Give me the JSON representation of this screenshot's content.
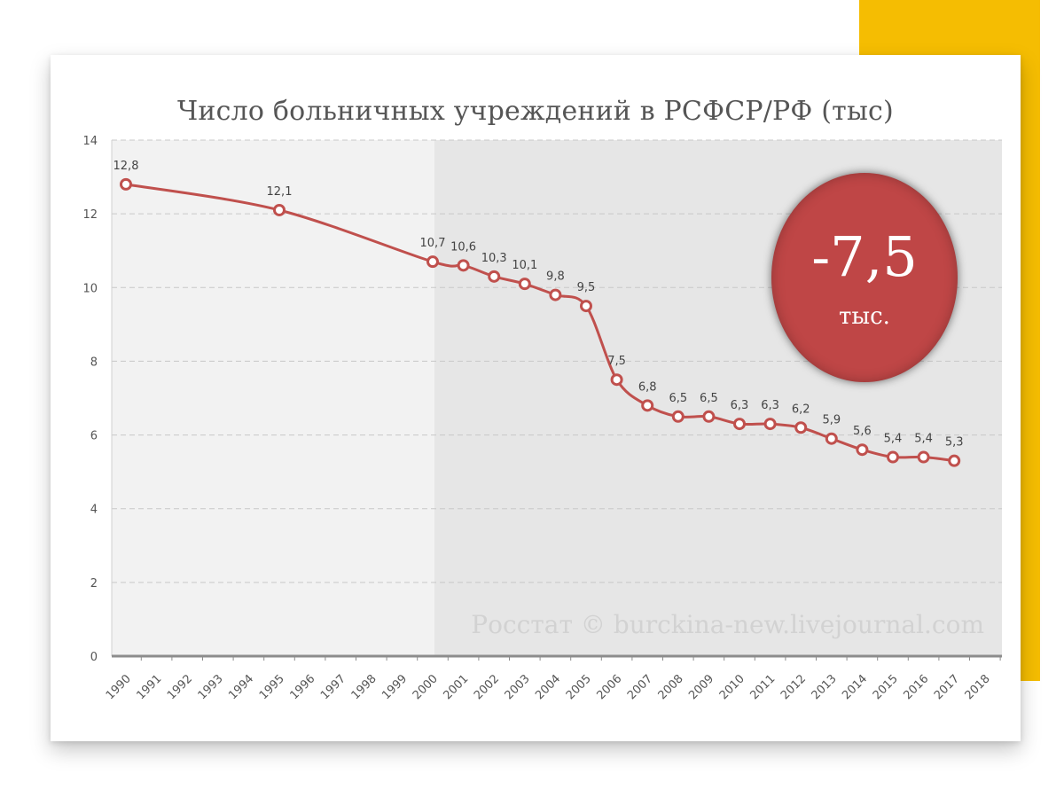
{
  "badge": {
    "value": "-7,5",
    "unit": "тыс."
  },
  "watermark": "Росстат © burckina-new.livejournal.com",
  "colors": {
    "accent_yellow": "#f5bd02",
    "line": "#c0504d",
    "badge": "#bf4646",
    "plot_left_bg": "#f2f2f2",
    "plot_right_bg": "#e6e6e6"
  },
  "chart_data": {
    "type": "line",
    "title": "Число больничных учреждений в РСФСР/РФ (тыс)",
    "xlabel": "",
    "ylabel": "",
    "categories": [
      "1990",
      "1991",
      "1992",
      "1993",
      "1994",
      "1995",
      "1996",
      "1997",
      "1998",
      "1999",
      "2000",
      "2001",
      "2002",
      "2003",
      "2004",
      "2005",
      "2006",
      "2007",
      "2008",
      "2009",
      "2010",
      "2011",
      "2012",
      "2013",
      "2014",
      "2015",
      "2016",
      "2017",
      "2018"
    ],
    "ylim": [
      0,
      14
    ],
    "yticks": [
      0,
      2,
      4,
      6,
      8,
      10,
      12,
      14
    ],
    "grid": true,
    "series": [
      {
        "points": [
          {
            "x": "1990",
            "y": 12.8,
            "label": "12,8"
          },
          {
            "x": "1995",
            "y": 12.1,
            "label": "12,1"
          },
          {
            "x": "2000",
            "y": 10.7,
            "label": "10,7"
          },
          {
            "x": "2001",
            "y": 10.6,
            "label": "10,6"
          },
          {
            "x": "2002",
            "y": 10.3,
            "label": "10,3"
          },
          {
            "x": "2003",
            "y": 10.1,
            "label": "10,1"
          },
          {
            "x": "2004",
            "y": 9.8,
            "label": "9,8"
          },
          {
            "x": "2005",
            "y": 9.5,
            "label": "9,5"
          },
          {
            "x": "2006",
            "y": 7.5,
            "label": "7,5"
          },
          {
            "x": "2007",
            "y": 6.8,
            "label": "6,8"
          },
          {
            "x": "2008",
            "y": 6.5,
            "label": "6,5"
          },
          {
            "x": "2009",
            "y": 6.5,
            "label": "6,5"
          },
          {
            "x": "2010",
            "y": 6.3,
            "label": "6,3"
          },
          {
            "x": "2011",
            "y": 6.3,
            "label": "6,3"
          },
          {
            "x": "2012",
            "y": 6.2,
            "label": "6,2"
          },
          {
            "x": "2013",
            "y": 5.9,
            "label": "5,9"
          },
          {
            "x": "2014",
            "y": 5.6,
            "label": "5,6"
          },
          {
            "x": "2015",
            "y": 5.4,
            "label": "5,4"
          },
          {
            "x": "2016",
            "y": 5.4,
            "label": "5,4"
          },
          {
            "x": "2017",
            "y": 5.3,
            "label": "5,3"
          }
        ]
      }
    ],
    "shaded_region_start": "2000"
  }
}
